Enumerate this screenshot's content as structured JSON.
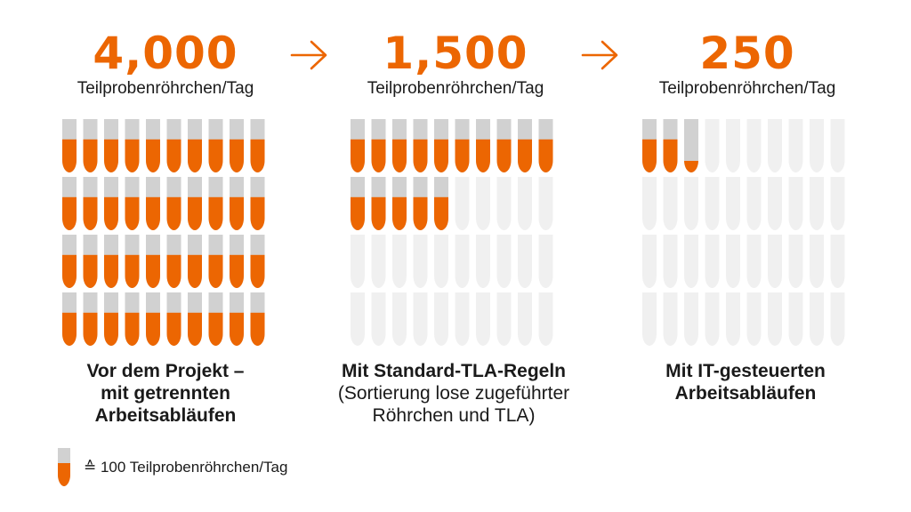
{
  "chart_data": {
    "type": "pictograph",
    "unit_value": 100,
    "capacity_per_panel": 40,
    "series": [
      {
        "value": "4,000",
        "numeric": 4000,
        "unit": "Teilprobenröhrchen/Tag",
        "caption": "Vor dem Projekt – mit getrennten Arbeitsabläufen",
        "caption_style": "bold"
      },
      {
        "value": "1,500",
        "numeric": 1500,
        "unit": "Teilprobenröhrchen/Tag",
        "caption": "Mit Standard-TLA-Regeln",
        "caption_sub": "(Sortierung lose zugeführter Röhrchen und TLA)",
        "caption_style": "bold"
      },
      {
        "value": "250",
        "numeric": 250,
        "unit": "Teilprobenröhrchen/Tag",
        "caption": "Mit IT-gesteuerten Arbeitsabläufen",
        "caption_style": "bold"
      }
    ],
    "legend": {
      "symbol": "tube-icon",
      "text": "≙ 100 Teilprobenröhrchen/Tag"
    }
  },
  "colors": {
    "accent": "#ec6602",
    "tube_cap": "#d1d1d1",
    "tube_empty": "#f0f0f0",
    "text": "#1a1a1a"
  },
  "icons": {
    "arrow": "arrow-right-icon",
    "tube": "tube-icon"
  }
}
